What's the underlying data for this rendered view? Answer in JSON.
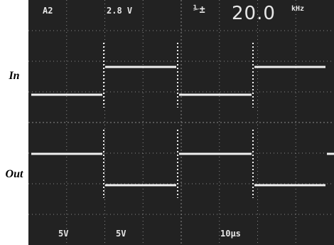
{
  "labels": {
    "input": "In",
    "output": "Out"
  },
  "header": {
    "channel": "A2",
    "trigger_level": "2.8 V",
    "trigger_icon": "trigger-slope-icon",
    "trigger_symbol": "⅟±",
    "frequency": "20.0",
    "frequency_unit": "kHz"
  },
  "footer": {
    "ch1_volts_per_div": "5V",
    "ch2_volts_per_div": "5V",
    "time_per_div": "10µs"
  },
  "colors": {
    "screen": "#222222",
    "trace": "#f0f0f0",
    "grid": "#8a8a8a"
  },
  "traces": {
    "in_levels": [
      "low",
      "high",
      "low",
      "high"
    ],
    "out_levels": [
      "high",
      "low",
      "high",
      "low"
    ]
  }
}
